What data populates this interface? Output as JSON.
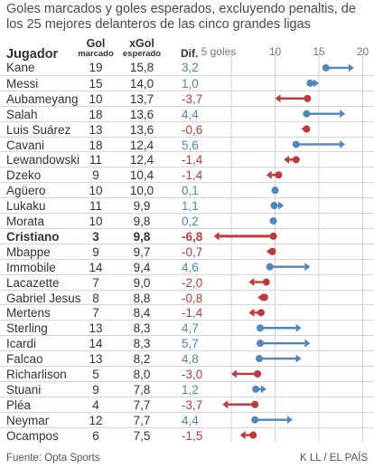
{
  "title": "Goles marcados y goles esperados, excluyendo penaltis, de los 25 mejores delanteros de las cinco grandes ligas",
  "header": {
    "jugador": "Jugador",
    "gol": "Gol",
    "gol_sub": "marcado",
    "xgol": "xGol",
    "xgol_sub": "esperado",
    "dif": "Dif."
  },
  "footer": {
    "source": "Fuente: Opta Sports",
    "credit": "K LL / EL PAÍS"
  },
  "colors": {
    "positive": "#4f86bd",
    "negative": "#c0393b",
    "grid": "#d0d0d0",
    "separator": "#d6d6d6"
  },
  "chart_data": {
    "type": "dumbbell",
    "xlim": [
      0,
      20
    ],
    "xticks": [
      5,
      10,
      15,
      20
    ],
    "xtick_labels": [
      "5 goles",
      "10",
      "15",
      "20"
    ],
    "grid": true,
    "highlight": "Cristiano",
    "players": [
      {
        "name": "Kane",
        "gol": "19",
        "xgol": "15,8",
        "dif": "3,2",
        "g": 19,
        "x": 15.8
      },
      {
        "name": "Messi",
        "gol": "15",
        "xgol": "14,0",
        "dif": "1,0",
        "g": 15,
        "x": 14.0
      },
      {
        "name": "Aubameyang",
        "gol": "10",
        "xgol": "13,7",
        "dif": "-3,7",
        "g": 10,
        "x": 13.7
      },
      {
        "name": "Salah",
        "gol": "18",
        "xgol": "13,6",
        "dif": "4,4",
        "g": 18,
        "x": 13.6
      },
      {
        "name": "Luis Suárez",
        "gol": "13",
        "xgol": "13,6",
        "dif": "-0,6",
        "g": 13,
        "x": 13.6
      },
      {
        "name": "Cavani",
        "gol": "18",
        "xgol": "12,4",
        "dif": "5,6",
        "g": 18,
        "x": 12.4
      },
      {
        "name": "Lewandowski",
        "gol": "11",
        "xgol": "12,4",
        "dif": "-1,4",
        "g": 11,
        "x": 12.4
      },
      {
        "name": "Dzeko",
        "gol": "9",
        "xgol": "10,4",
        "dif": "-1,4",
        "g": 9,
        "x": 10.4
      },
      {
        "name": "Agüero",
        "gol": "10",
        "xgol": "10,0",
        "dif": "0,1",
        "g": 10,
        "x": 10.0
      },
      {
        "name": "Lukaku",
        "gol": "11",
        "xgol": "9,9",
        "dif": "1,1",
        "g": 11,
        "x": 9.9
      },
      {
        "name": "Morata",
        "gol": "10",
        "xgol": "9,8",
        "dif": "0,2",
        "g": 10,
        "x": 9.8
      },
      {
        "name": "Cristiano",
        "gol": "3",
        "xgol": "9,8",
        "dif": "-6,8",
        "g": 3,
        "x": 9.8
      },
      {
        "name": "Mbappe",
        "gol": "9",
        "xgol": "9,7",
        "dif": "-0,7",
        "g": 9,
        "x": 9.7
      },
      {
        "name": "Immobile",
        "gol": "14",
        "xgol": "9,4",
        "dif": "4,6",
        "g": 14,
        "x": 9.4
      },
      {
        "name": "Lacazette",
        "gol": "7",
        "xgol": "9,0",
        "dif": "-2,0",
        "g": 7,
        "x": 9.0
      },
      {
        "name": "Gabriel Jesus",
        "gol": "8",
        "xgol": "8,8",
        "dif": "-0,8",
        "g": 8,
        "x": 8.8
      },
      {
        "name": "Mertens",
        "gol": "7",
        "xgol": "8,4",
        "dif": "-1,4",
        "g": 7,
        "x": 8.4
      },
      {
        "name": "Sterling",
        "gol": "13",
        "xgol": "8,3",
        "dif": "4,7",
        "g": 13,
        "x": 8.3
      },
      {
        "name": "Icardi",
        "gol": "14",
        "xgol": "8,3",
        "dif": "5,7",
        "g": 14,
        "x": 8.3
      },
      {
        "name": "Falcao",
        "gol": "13",
        "xgol": "8,2",
        "dif": "4,8",
        "g": 13,
        "x": 8.2
      },
      {
        "name": "Richarlison",
        "gol": "5",
        "xgol": "8,0",
        "dif": "-3,0",
        "g": 5,
        "x": 8.0
      },
      {
        "name": "Stuani",
        "gol": "9",
        "xgol": "7,8",
        "dif": "1,2",
        "g": 9,
        "x": 7.8
      },
      {
        "name": "Pléa",
        "gol": "4",
        "xgol": "7,7",
        "dif": "-3,7",
        "g": 4,
        "x": 7.7
      },
      {
        "name": "Neymar",
        "gol": "12",
        "xgol": "7,7",
        "dif": "4,4",
        "g": 12,
        "x": 7.7
      },
      {
        "name": "Ocampos",
        "gol": "6",
        "xgol": "7,5",
        "dif": "-1,5",
        "g": 6,
        "x": 7.5
      }
    ]
  }
}
